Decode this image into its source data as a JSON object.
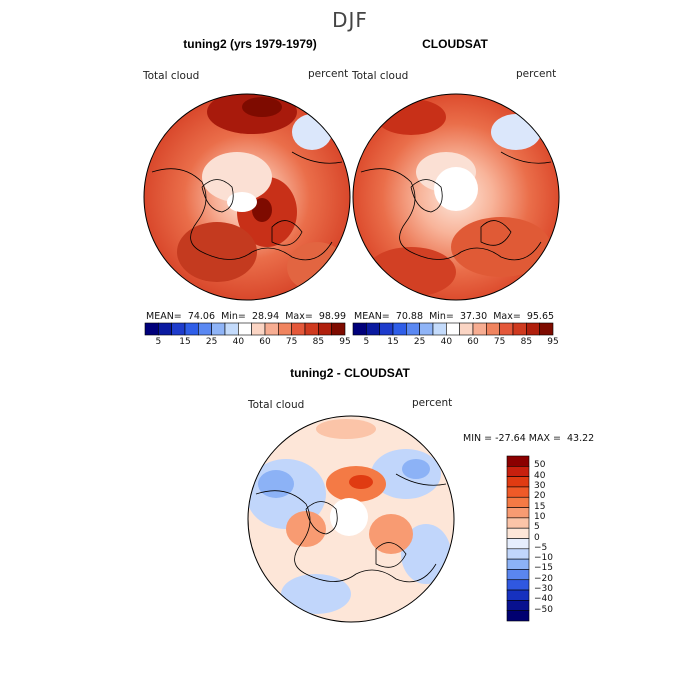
{
  "season": "DJF",
  "panels": [
    {
      "title": "tuning2 (yrs 1979-1979)",
      "variable": "Total cloud",
      "units": "percent",
      "stats": {
        "mean_label": "MEAN=",
        "mean": "74.06",
        "min_label": "Min=",
        "min": "28.94",
        "max_label": "Max=",
        "max": "98.99"
      }
    },
    {
      "title": "CLOUDSAT",
      "variable": "Total cloud",
      "units": "percent",
      "stats": {
        "mean_label": "MEAN=",
        "mean": "70.88",
        "min_label": "Min=",
        "min": "37.30",
        "max_label": "Max=",
        "max": "95.65"
      }
    },
    {
      "title": "tuning2 - CLOUDSAT",
      "variable": "Total cloud",
      "units": "percent",
      "stats": {
        "min_label": "MIN =",
        "min": "-27.64",
        "max_label": "MAX =",
        "max": "43.22"
      }
    }
  ],
  "colorbar_abs": {
    "colors": [
      "#00007a",
      "#0a1aa0",
      "#1e3ccc",
      "#2f5ee8",
      "#5a88f2",
      "#8fb4f7",
      "#c4dbfb",
      "#ffffff",
      "#fbd5c4",
      "#f7ad92",
      "#f0845f",
      "#e4583a",
      "#cf3a1f",
      "#b01f0c",
      "#7e0b00"
    ],
    "labels": [
      "5",
      "15",
      "25",
      "40",
      "60",
      "75",
      "85",
      "95"
    ]
  },
  "colorbar_diff": {
    "colors": [
      "#8b0000",
      "#c8200e",
      "#e03b12",
      "#ef5a28",
      "#f47a45",
      "#f89b72",
      "#fbc4a8",
      "#fde6d8",
      "#e6eefd",
      "#c1d6fb",
      "#8cb2f6",
      "#5a86ef",
      "#3058e0",
      "#1631bf",
      "#08118f",
      "#000070"
    ],
    "labels": [
      "50",
      "40",
      "30",
      "20",
      "15",
      "10",
      "5",
      "0",
      "−5",
      "−10",
      "−15",
      "−20",
      "−30",
      "−40",
      "−50"
    ]
  }
}
